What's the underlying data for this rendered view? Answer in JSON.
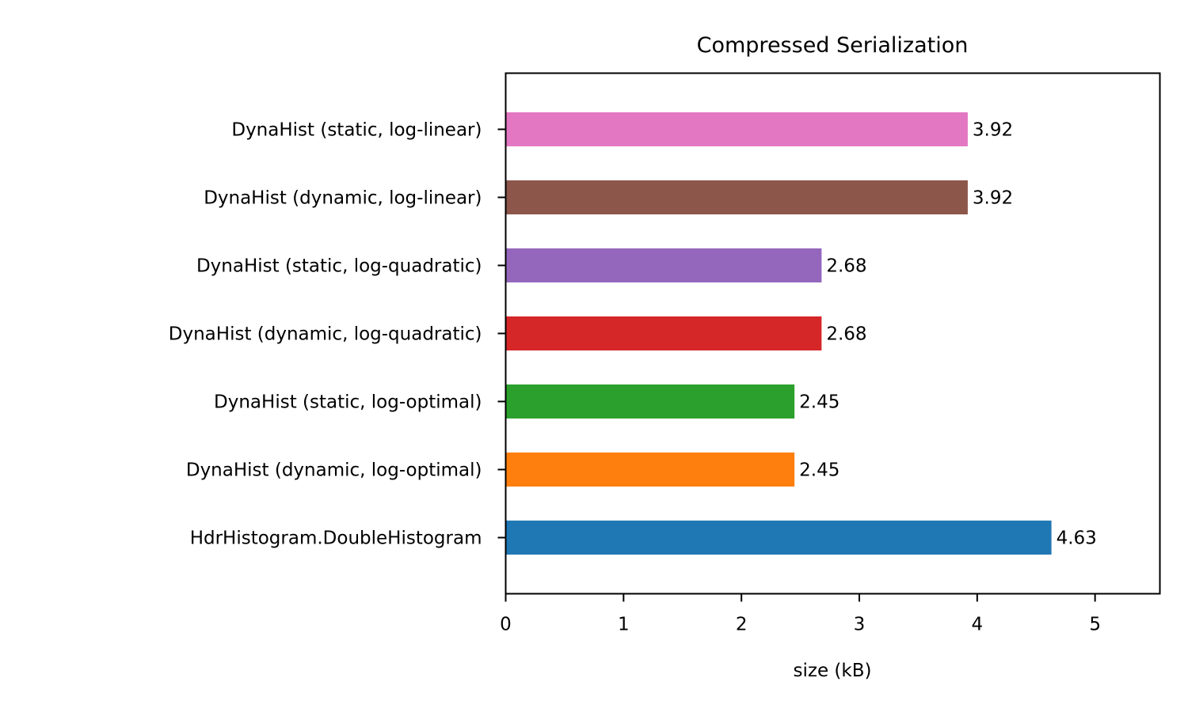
{
  "chart_data": {
    "type": "bar",
    "orientation": "horizontal",
    "title": "Compressed Serialization",
    "xlabel": "size (kB)",
    "ylabel": "",
    "xlim": [
      0,
      5.55
    ],
    "xticks": [
      0,
      1,
      2,
      3,
      4,
      5
    ],
    "grid": false,
    "categories": [
      "HdrHistogram.DoubleHistogram",
      "DynaHist (dynamic, log-optimal)",
      "DynaHist (static, log-optimal)",
      "DynaHist (dynamic, log-quadratic)",
      "DynaHist (static, log-quadratic)",
      "DynaHist (dynamic, log-linear)",
      "DynaHist (static, log-linear)"
    ],
    "values": [
      4.63,
      2.45,
      2.45,
      2.68,
      2.68,
      3.92,
      3.92
    ],
    "value_labels": [
      "4.63",
      "2.45",
      "2.45",
      "2.68",
      "2.68",
      "3.92",
      "3.92"
    ],
    "colors": [
      "#1f77b4",
      "#ff7f0e",
      "#2ca02c",
      "#d62728",
      "#9467bd",
      "#8c564b",
      "#e377c2"
    ]
  }
}
